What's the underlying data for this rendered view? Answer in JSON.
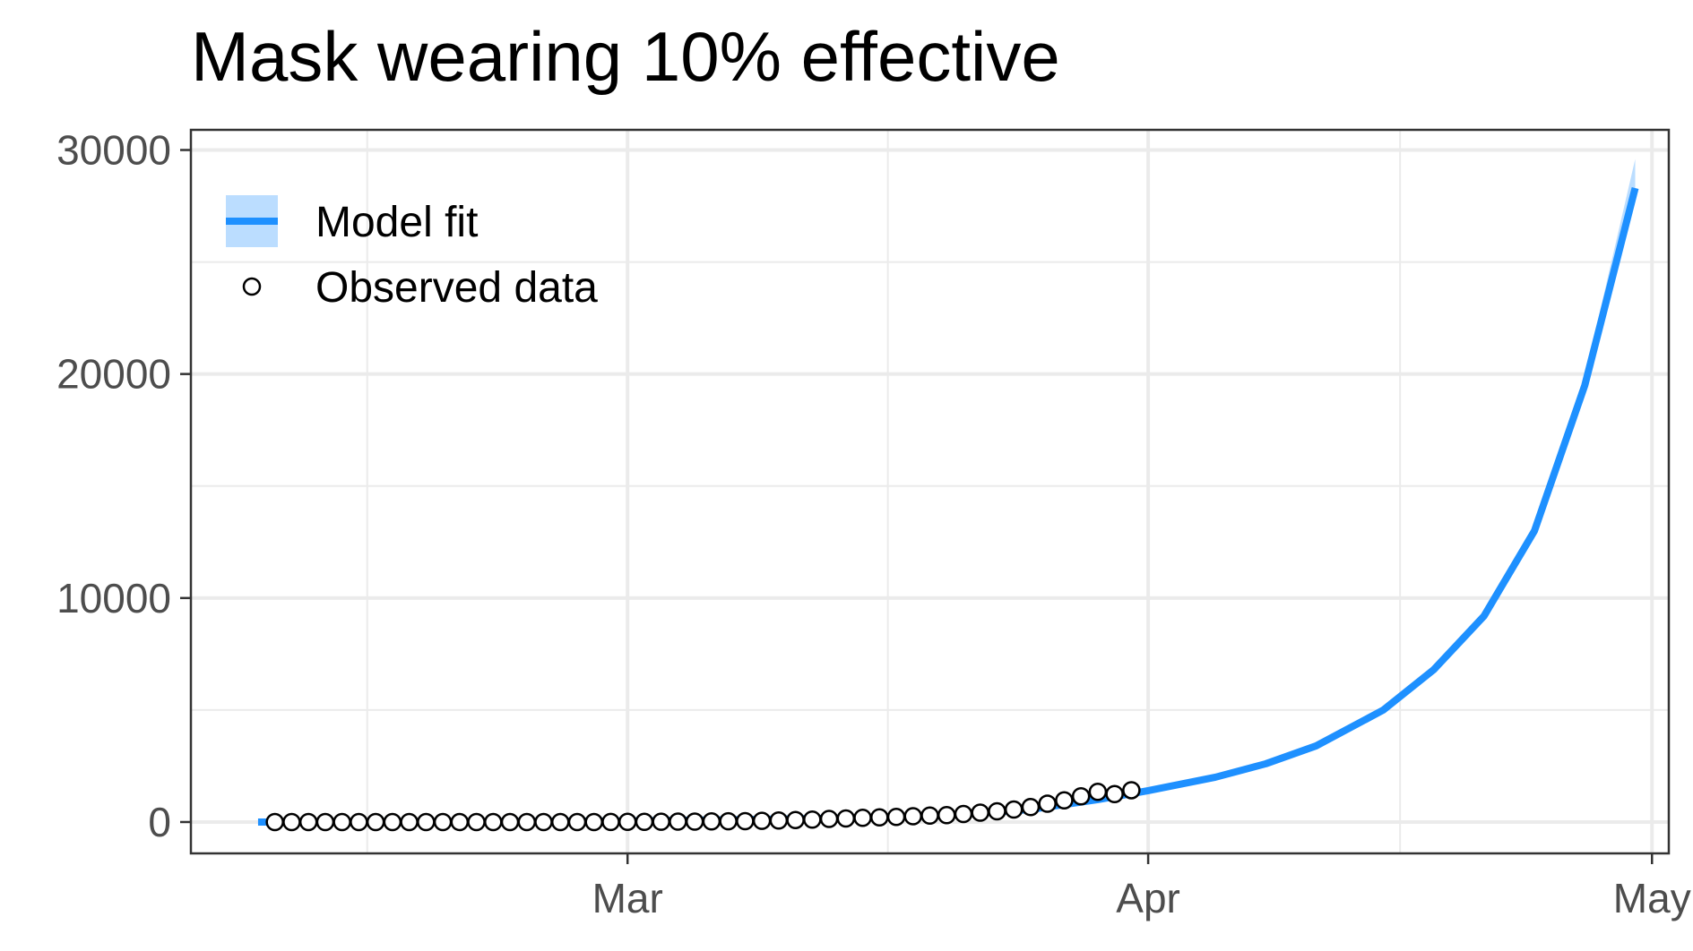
{
  "chart_data": {
    "type": "line",
    "title": "Mask wearing 10% effective",
    "xlabel": "",
    "ylabel": "",
    "x_ticks": [
      {
        "label": "Mar",
        "date": "2020-03-01"
      },
      {
        "label": "Apr",
        "date": "2020-04-01"
      },
      {
        "label": "May",
        "date": "2020-05-01"
      }
    ],
    "y_ticks": [
      0,
      10000,
      20000,
      30000
    ],
    "xlim": [
      "2020-02-04",
      "2020-05-02"
    ],
    "ylim": [
      -1400,
      30900
    ],
    "grid": true,
    "legend_position": "top-left",
    "legend": [
      {
        "label": "Model fit",
        "kind": "line-ribbon",
        "color": "#1E90FF",
        "fill": "#BBDDFF"
      },
      {
        "label": "Observed data",
        "kind": "open-circle",
        "color": "#000000"
      }
    ],
    "series": [
      {
        "name": "Model fit",
        "kind": "line",
        "color": "#1E90FF",
        "ribbon_color": "#BBDDFF",
        "start_date": "2020-02-08",
        "end_date": "2020-04-30",
        "points": [
          {
            "date": "2020-02-08",
            "value": 0
          },
          {
            "date": "2020-02-15",
            "value": 6
          },
          {
            "date": "2020-02-22",
            "value": 18
          },
          {
            "date": "2020-03-01",
            "value": 50
          },
          {
            "date": "2020-03-08",
            "value": 110
          },
          {
            "date": "2020-03-15",
            "value": 190
          },
          {
            "date": "2020-03-20",
            "value": 300
          },
          {
            "date": "2020-03-25",
            "value": 560
          },
          {
            "date": "2020-03-29",
            "value": 1000
          },
          {
            "date": "2020-04-01",
            "value": 1400
          },
          {
            "date": "2020-04-05",
            "value": 2000
          },
          {
            "date": "2020-04-08",
            "value": 2600
          },
          {
            "date": "2020-04-11",
            "value": 3400
          },
          {
            "date": "2020-04-15",
            "value": 5000
          },
          {
            "date": "2020-04-18",
            "value": 6800
          },
          {
            "date": "2020-04-21",
            "value": 9200
          },
          {
            "date": "2020-04-24",
            "value": 13000
          },
          {
            "date": "2020-04-27",
            "value": 19500
          },
          {
            "date": "2020-04-30",
            "value": 28300
          }
        ],
        "ribbon_upper_end": 29600
      },
      {
        "name": "Observed data",
        "kind": "points",
        "color": "#000000",
        "start_date": "2020-02-09",
        "values": [
          0,
          0,
          0,
          0,
          0,
          0,
          0,
          0,
          0,
          0,
          0,
          0,
          0,
          0,
          0,
          0,
          0,
          0,
          0,
          0,
          5,
          10,
          10,
          15,
          20,
          20,
          30,
          35,
          40,
          55,
          70,
          90,
          110,
          140,
          160,
          190,
          210,
          230,
          260,
          290,
          310,
          360,
          420,
          480,
          560,
          670,
          820,
          970,
          1150,
          1350,
          1250,
          1420
        ]
      }
    ]
  }
}
